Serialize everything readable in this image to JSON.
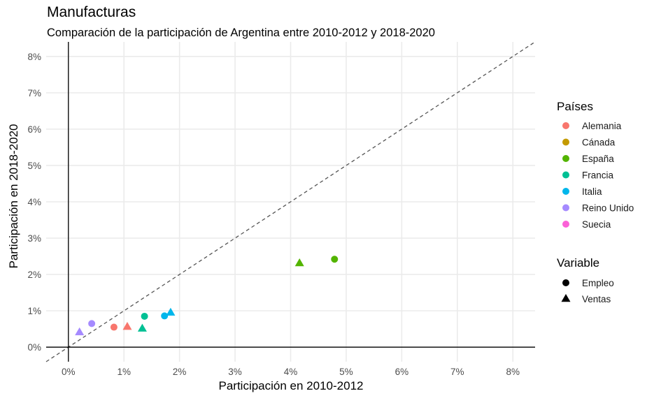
{
  "chart_data": {
    "type": "scatter",
    "title": "Manufacturas",
    "subtitle": "Comparación de la participación de Argentina entre 2010-2012 y 2018-2020",
    "xlabel": "Participación en 2010-2012",
    "ylabel": "Participación en 2018-2020",
    "xlim": [
      -0.4,
      8.4
    ],
    "ylim": [
      -0.4,
      8.4
    ],
    "ticks": [
      0,
      1,
      2,
      3,
      4,
      5,
      6,
      7,
      8
    ],
    "tick_labels": [
      "0%",
      "1%",
      "2%",
      "3%",
      "4%",
      "5%",
      "6%",
      "7%",
      "8%"
    ],
    "grid": true,
    "reference_line": {
      "type": "identity",
      "style": "dashed",
      "color": "#555555"
    },
    "legend_position": "right",
    "legend_countries": {
      "title": "Países",
      "items": [
        {
          "name": "Alemania",
          "color": "#F8766D"
        },
        {
          "name": "Cánada",
          "color": "#C49A00"
        },
        {
          "name": "España",
          "color": "#53B400"
        },
        {
          "name": "Francia",
          "color": "#00C094"
        },
        {
          "name": "Italia",
          "color": "#00B6EB"
        },
        {
          "name": "Reino Unido",
          "color": "#A58AFF"
        },
        {
          "name": "Suecia",
          "color": "#FB61D7"
        }
      ]
    },
    "legend_variable": {
      "title": "Variable",
      "items": [
        {
          "name": "Empleo",
          "shape": "circle"
        },
        {
          "name": "Ventas",
          "shape": "triangle"
        }
      ]
    },
    "points": [
      {
        "country": "Alemania",
        "variable": "Empleo",
        "x": 0.82,
        "y": 0.55
      },
      {
        "country": "Alemania",
        "variable": "Ventas",
        "x": 1.06,
        "y": 0.56
      },
      {
        "country": "España",
        "variable": "Empleo",
        "x": 4.79,
        "y": 2.42
      },
      {
        "country": "España",
        "variable": "Ventas",
        "x": 4.16,
        "y": 2.31
      },
      {
        "country": "Francia",
        "variable": "Empleo",
        "x": 1.37,
        "y": 0.85
      },
      {
        "country": "Francia",
        "variable": "Ventas",
        "x": 1.33,
        "y": 0.51
      },
      {
        "country": "Italia",
        "variable": "Empleo",
        "x": 1.73,
        "y": 0.86
      },
      {
        "country": "Italia",
        "variable": "Ventas",
        "x": 1.84,
        "y": 0.95
      },
      {
        "country": "Reino Unido",
        "variable": "Empleo",
        "x": 0.42,
        "y": 0.65
      },
      {
        "country": "Reino Unido",
        "variable": "Ventas",
        "x": 0.2,
        "y": 0.41
      }
    ]
  }
}
